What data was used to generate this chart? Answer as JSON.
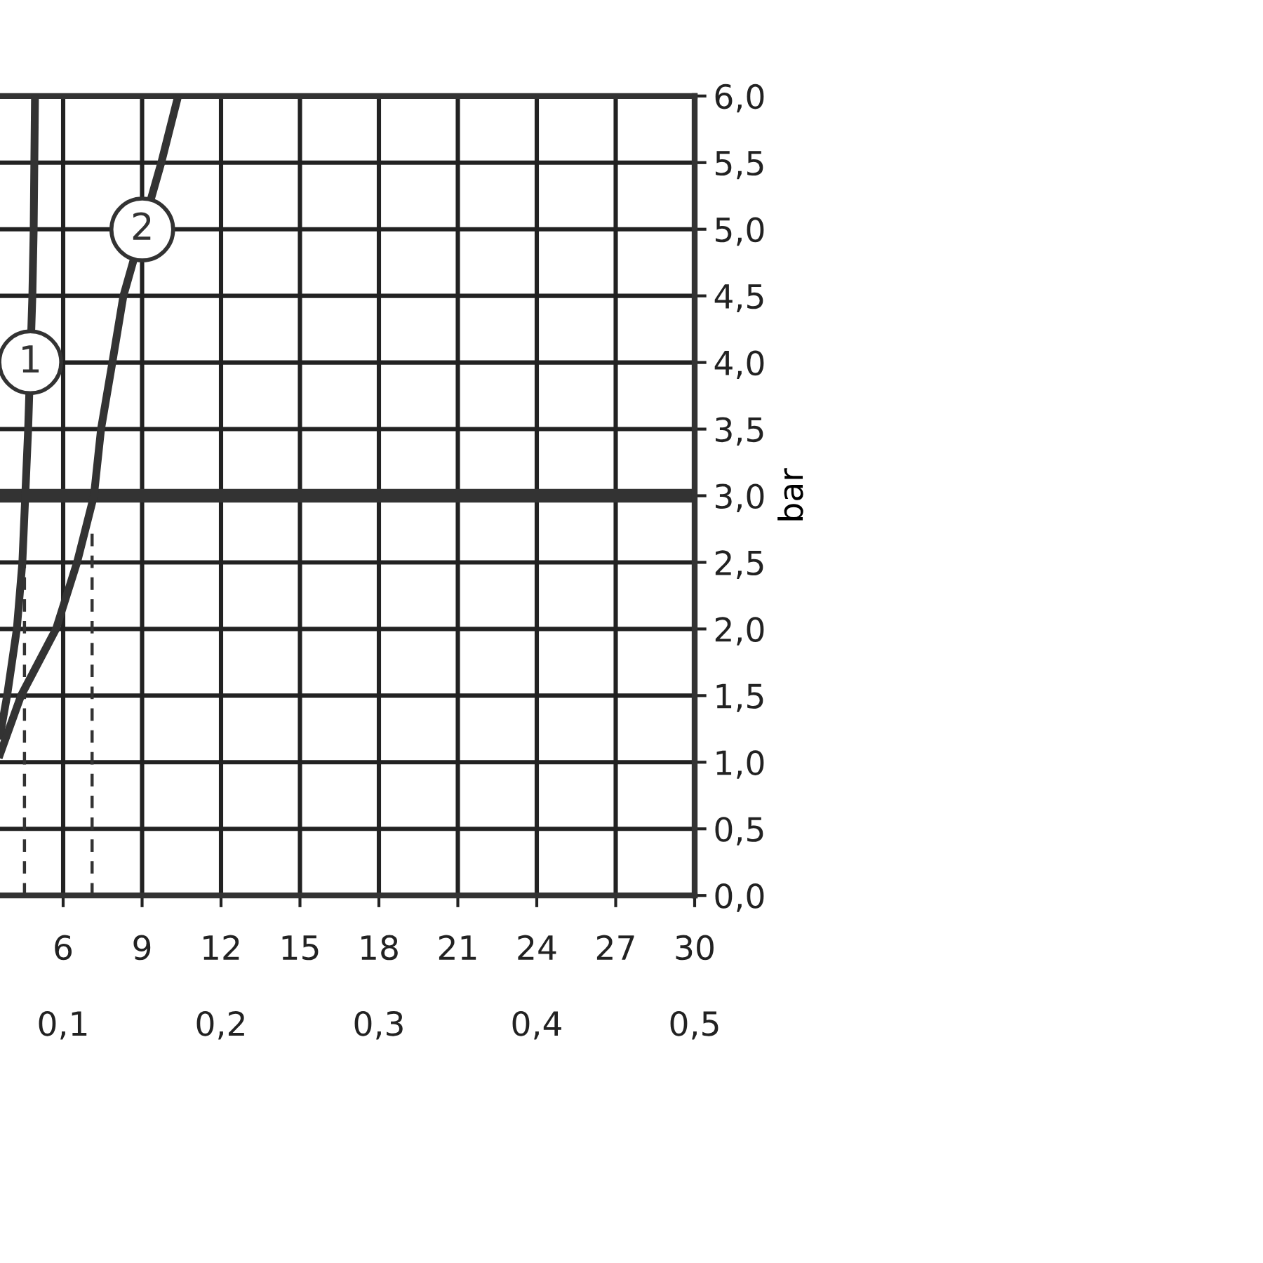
{
  "chart_data": {
    "type": "line",
    "ylabel": "bar",
    "xlim": [
      3.6,
      30
    ],
    "xticks": [
      6,
      9,
      12,
      15,
      18,
      21,
      24,
      27,
      30
    ],
    "x2lim": [
      0.06,
      0.5
    ],
    "x2ticks": [
      {
        "value": 0.1,
        "label": "0,1"
      },
      {
        "value": 0.2,
        "label": "0,2"
      },
      {
        "value": 0.3,
        "label": "0,3"
      },
      {
        "value": 0.4,
        "label": "0,4"
      },
      {
        "value": 0.5,
        "label": "0,5"
      }
    ],
    "ylim": [
      0,
      6
    ],
    "yticks": [
      {
        "value": 0,
        "label": "0,0"
      },
      {
        "value": 0.5,
        "label": "0,5"
      },
      {
        "value": 1,
        "label": "1,0"
      },
      {
        "value": 1.5,
        "label": "1,5"
      },
      {
        "value": 2,
        "label": "2,0"
      },
      {
        "value": 2.5,
        "label": "2,5"
      },
      {
        "value": 3,
        "label": "3,0"
      },
      {
        "value": 3.5,
        "label": "3,5"
      },
      {
        "value": 4,
        "label": "4,0"
      },
      {
        "value": 4.5,
        "label": "4,5"
      },
      {
        "value": 5,
        "label": "5,0"
      },
      {
        "value": 5.5,
        "label": "5,5"
      },
      {
        "value": 6,
        "label": "6,0"
      }
    ],
    "grid": true,
    "marker": "none",
    "series": [
      {
        "name": "1",
        "color": "#333333",
        "line_style": "solid",
        "x": [
          3.6,
          3.87,
          4.24,
          4.45,
          4.56,
          4.67,
          4.83,
          4.88,
          4.93
        ],
        "values": [
          1.2,
          1.5,
          2.0,
          2.5,
          3.0,
          3.5,
          4.5,
          5.0,
          6.0
        ]
      },
      {
        "name": "2",
        "color": "#333333",
        "line_style": "solid",
        "x": [
          3.6,
          4.4,
          5.73,
          6.53,
          7.17,
          7.44,
          7.87,
          8.29,
          9.73,
          10.37
        ],
        "values": [
          1.06,
          1.5,
          2.0,
          2.5,
          3.0,
          3.5,
          4.0,
          4.5,
          5.5,
          6.0
        ]
      },
      {
        "color": "#333333",
        "line_style": "dashed",
        "x": [
          4.53,
          4.53
        ],
        "values": [
          0,
          2.5
        ]
      },
      {
        "color": "#333333",
        "line_style": "dashed",
        "x": [
          7.1,
          7.1
        ],
        "values": [
          0,
          2.75
        ]
      }
    ],
    "ref_lines": [
      {
        "axis": "y",
        "value": 3,
        "color": "#333333"
      }
    ]
  }
}
